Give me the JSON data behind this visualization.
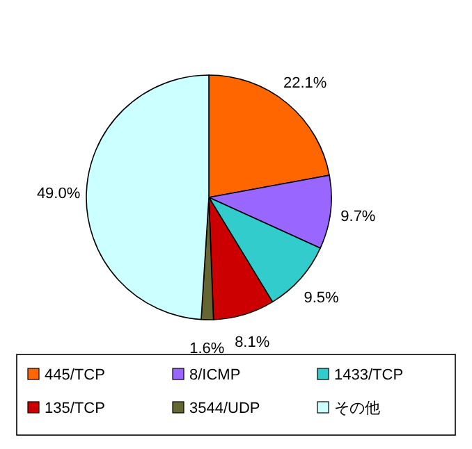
{
  "chart_data": {
    "type": "pie",
    "categories": [
      "445/TCP",
      "8/ICMP",
      "1433/TCP",
      "135/TCP",
      "3544/UDP",
      "その他"
    ],
    "values": [
      22.1,
      9.7,
      9.5,
      8.1,
      1.6,
      49.0
    ],
    "colors": [
      "#ff6600",
      "#9966ff",
      "#33cccc",
      "#cc0000",
      "#666633",
      "#ccffff"
    ],
    "value_labels": [
      "22.1%",
      "9.7%",
      "9.5%",
      "8.1%",
      "1.6%",
      "49.0%"
    ],
    "legend": "bottom"
  }
}
